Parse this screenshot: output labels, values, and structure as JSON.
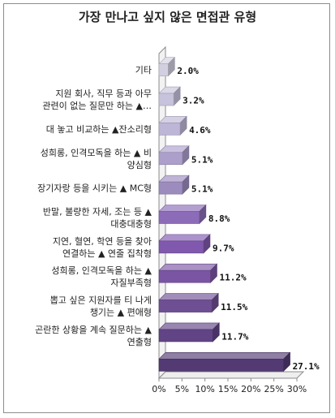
{
  "chart_data": {
    "type": "bar",
    "orientation": "horizontal",
    "title": "가장 만나고 싶지 않은 면접관 유형",
    "categories": [
      [
        "기타"
      ],
      [
        "지원 회사, 직무 등과 아무",
        "관련이 없는 질문만 하는 ▲…"
      ],
      [
        "대 놓고 비교하는 ▲잔소리형"
      ],
      [
        "성희롱, 인격모독을 하는 ▲ 비",
        "양심형"
      ],
      [
        "장기자랑 등을 시키는 ▲ MC형"
      ],
      [
        "반말, 불량한 자세, 조는 등 ▲",
        "대충대충형"
      ],
      [
        "지연, 혈연, 학연 등을 찾아",
        "연결하는 ▲ 연줄 집착형"
      ],
      [
        "성희롱, 인격모독을 하는 ▲",
        "자질부족형"
      ],
      [
        "뽑고 싶은 지원자를 티 나게",
        "챙기는 ▲ 편애형"
      ],
      [
        "곤란한 상황을 계속 질문하는 ▲",
        "연출형"
      ],
      [
        ""
      ]
    ],
    "values": [
      2.0,
      3.2,
      4.6,
      5.1,
      5.1,
      8.8,
      9.7,
      11.2,
      11.5,
      11.7,
      27.1
    ],
    "value_labels": [
      "2.0%",
      "3.2%",
      "4.6%",
      "5.1%",
      "5.1%",
      "8.8%",
      "9.7%",
      "11.2%",
      "11.5%",
      "11.7%",
      "27.1%"
    ],
    "xlim": [
      0,
      30
    ],
    "xticks": [
      "0%",
      "5%",
      "10%",
      "15%",
      "20%",
      "25%",
      "30%"
    ],
    "grid": false,
    "legend": "none",
    "colors": [
      "#d2cfe0",
      "#c8c3dc",
      "#beb6d6",
      "#ac9fcb",
      "#9c8cbe",
      "#8c6cb8",
      "#8058ad",
      "#7a55a3",
      "#6e4f93",
      "#614485",
      "#533a73"
    ]
  }
}
